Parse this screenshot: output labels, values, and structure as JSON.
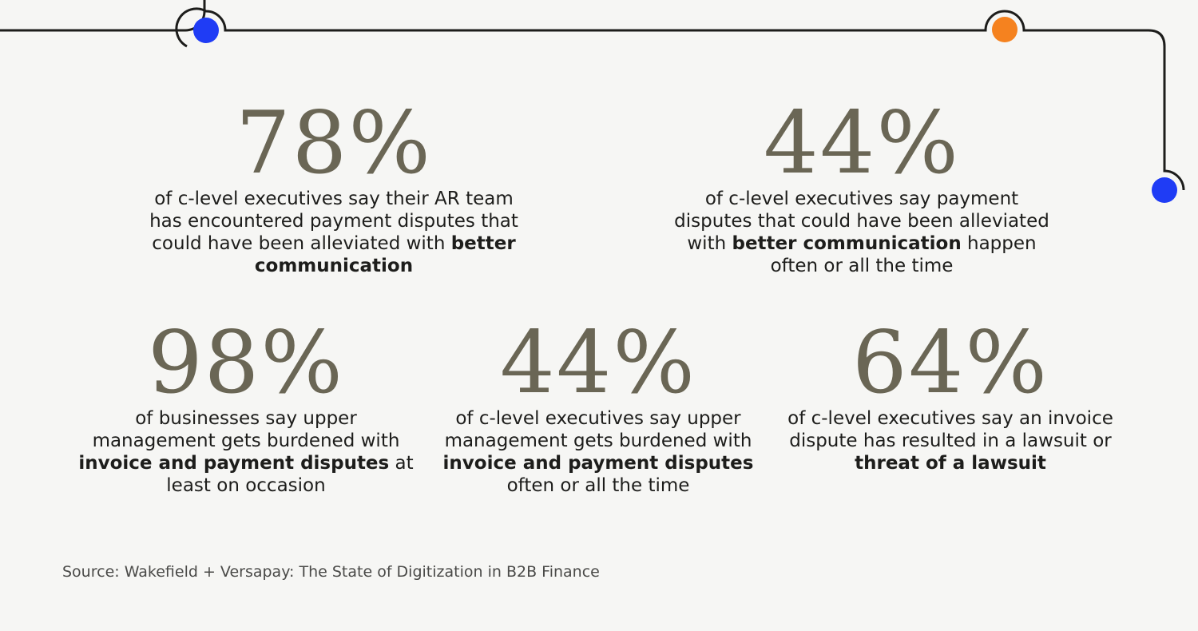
{
  "stats": [
    {
      "value": "78%",
      "desc": {
        "pre": "of c-level executives say their AR team has encountered payment disputes that could have been alleviated with ",
        "bold": "better communication",
        "post": ""
      }
    },
    {
      "value": "44%",
      "desc": {
        "pre": "of c-level executives say payment disputes that could have been alleviated with ",
        "bold": "better communication",
        "post": " happen often or all the time"
      }
    },
    {
      "value": "98%",
      "desc": {
        "pre": "of businesses say upper management gets burdened with ",
        "bold": "invoice and payment disputes",
        "post": " at least on occasion"
      }
    },
    {
      "value": "44%",
      "desc": {
        "pre": "of c-level executives say upper management gets burdened with ",
        "bold": "invoice and payment disputes",
        "post": " often or all the time"
      }
    },
    {
      "value": "64%",
      "desc": {
        "pre": "of c-level executives say an invoice dispute has resulted in a lawsuit or ",
        "bold": "threat of a lawsuit",
        "post": ""
      }
    }
  ],
  "source": "Source: Wakefield + Versapay: The State of Digitization in B2B Finance",
  "colors": {
    "line": "#1d1d1b",
    "dot_blue": "#1f3cf5",
    "dot_orange": "#f5821f",
    "number": "#6a6655",
    "background": "#f6f6f4"
  }
}
